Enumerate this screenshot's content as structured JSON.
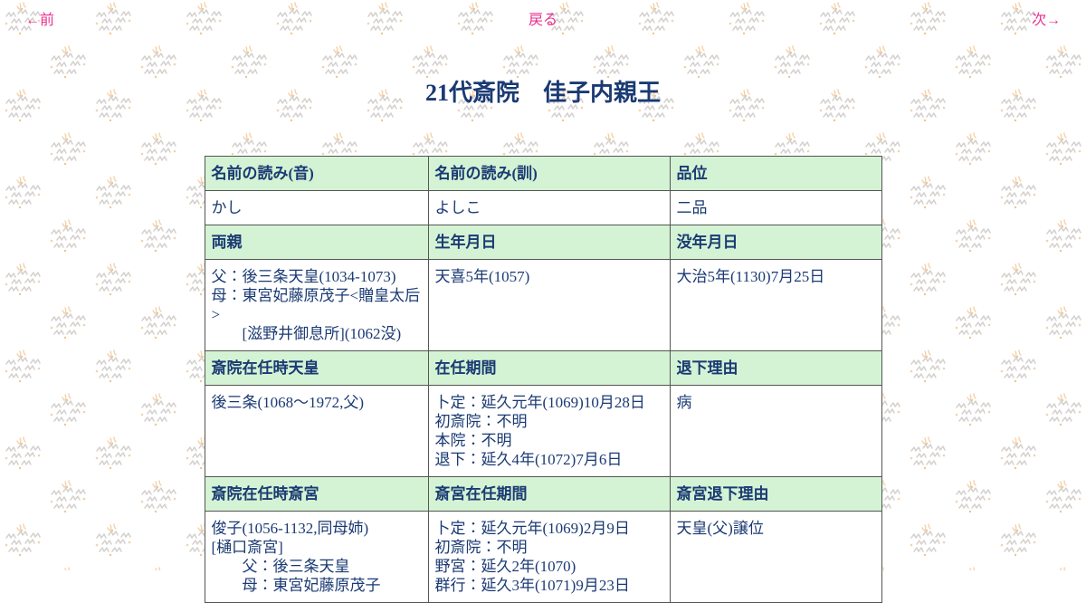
{
  "nav": {
    "prev": "←前",
    "back": "戻る",
    "next": "次→"
  },
  "title": "21代斎院　佳子内親王",
  "colors": {
    "link_pink": "#e9308e",
    "text_navy": "#1a3a73",
    "header_green": "#d4f3d4",
    "table_border": "#555555",
    "pattern_gray": "#c6c2bd",
    "pattern_orange": "#eec391"
  },
  "table": {
    "sections": [
      {
        "headers": [
          "名前の読み(音)",
          "名前の読み(訓)",
          "品位"
        ],
        "cells": [
          [
            "かし"
          ],
          [
            "よしこ"
          ],
          [
            "二品"
          ]
        ]
      },
      {
        "headers": [
          "両親",
          "生年月日",
          "没年月日"
        ],
        "cells": [
          [
            "父：後三条天皇(1034-1073)",
            "母：東宮妃藤原茂子<贈皇太后>",
            "　　[滋野井御息所](1062没)"
          ],
          [
            "天喜5年(1057)"
          ],
          [
            "大治5年(1130)7月25日"
          ]
        ]
      },
      {
        "headers": [
          "斎院在任時天皇",
          "在任期間",
          "退下理由"
        ],
        "cells": [
          [
            "後三条(1068～1972,父)"
          ],
          [
            "卜定：延久元年(1069)10月28日",
            "初斎院：不明",
            "本院：不明",
            "退下：延久4年(1072)7月6日"
          ],
          [
            "病"
          ]
        ]
      },
      {
        "headers": [
          "斎院在任時斎宮",
          "斎宮在任期間",
          "斎宮退下理由"
        ],
        "cells": [
          [
            "俊子(1056-1132,同母姉)",
            "[樋口斎宮]",
            "　　父：後三条天皇",
            "　　母：東宮妃藤原茂子"
          ],
          [
            "卜定：延久元年(1069)2月9日",
            "初斎院：不明",
            "野宮：延久2年(1070)",
            "群行：延久3年(1071)9月23日"
          ],
          [
            "天皇(父)譲位"
          ]
        ]
      }
    ]
  }
}
